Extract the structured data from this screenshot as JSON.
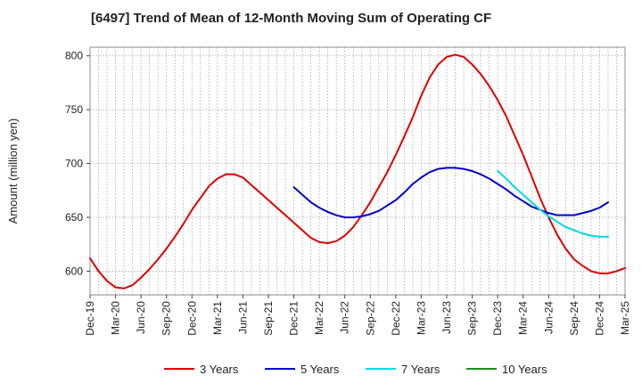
{
  "chart_data": {
    "type": "line",
    "title": "[6497]  Trend of Mean of 12-Month Moving Sum of Operating CF",
    "xlabel": "",
    "ylabel": "Amount (million yen)",
    "ylim": [
      578,
      808
    ],
    "yticks": [
      600,
      650,
      700,
      750,
      800
    ],
    "ytick_labels": [
      "600",
      "650",
      "700",
      "750",
      "800"
    ],
    "x_start": "Dec-19",
    "x_end": "Mar-25",
    "xtick_labels": [
      "Dec-19",
      "Mar-20",
      "Jun-20",
      "Sep-20",
      "Dec-20",
      "Mar-21",
      "Jun-21",
      "Sep-21",
      "Dec-21",
      "Mar-22",
      "Jun-22",
      "Sep-22",
      "Dec-22",
      "Mar-23",
      "Jun-23",
      "Sep-23",
      "Dec-23",
      "Mar-24",
      "Jun-24",
      "Sep-24",
      "Dec-24",
      "Mar-25"
    ],
    "grid": true,
    "legend_position": "bottom",
    "series": [
      {
        "name": "3 Years",
        "color": "#dd0000",
        "start_index": 0,
        "values": [
          612,
          600,
          591,
          585,
          584,
          587,
          594,
          602,
          611,
          621,
          632,
          644,
          657,
          668,
          679,
          686,
          690,
          690,
          687,
          680,
          673,
          666,
          659,
          652,
          645,
          638,
          631,
          627,
          626,
          628,
          633,
          641,
          652,
          664,
          678,
          692,
          708,
          725,
          743,
          763,
          780,
          792,
          799,
          801,
          799,
          792,
          783,
          772,
          759,
          744,
          726,
          708,
          688,
          668,
          650,
          634,
          621,
          611,
          605,
          600,
          598,
          598,
          600,
          603
        ]
      },
      {
        "name": "5 Years",
        "color": "#0000cc",
        "start_index": 24,
        "values": [
          678,
          671,
          664,
          659,
          655,
          652,
          650,
          650,
          651,
          653,
          656,
          661,
          666,
          673,
          681,
          687,
          692,
          695,
          696,
          696,
          695,
          693,
          690,
          686,
          681,
          676,
          670,
          665,
          660,
          657,
          654,
          652,
          652,
          652,
          654,
          656,
          659,
          664
        ]
      },
      {
        "name": "7 Years",
        "color": "#00dddd",
        "start_index": 48,
        "values": [
          693,
          686,
          678,
          671,
          664,
          657,
          651,
          646,
          641,
          638,
          635,
          633,
          632,
          632
        ]
      },
      {
        "name": "10 Years",
        "color": "#228b22",
        "start_index": 0,
        "values": []
      }
    ]
  }
}
